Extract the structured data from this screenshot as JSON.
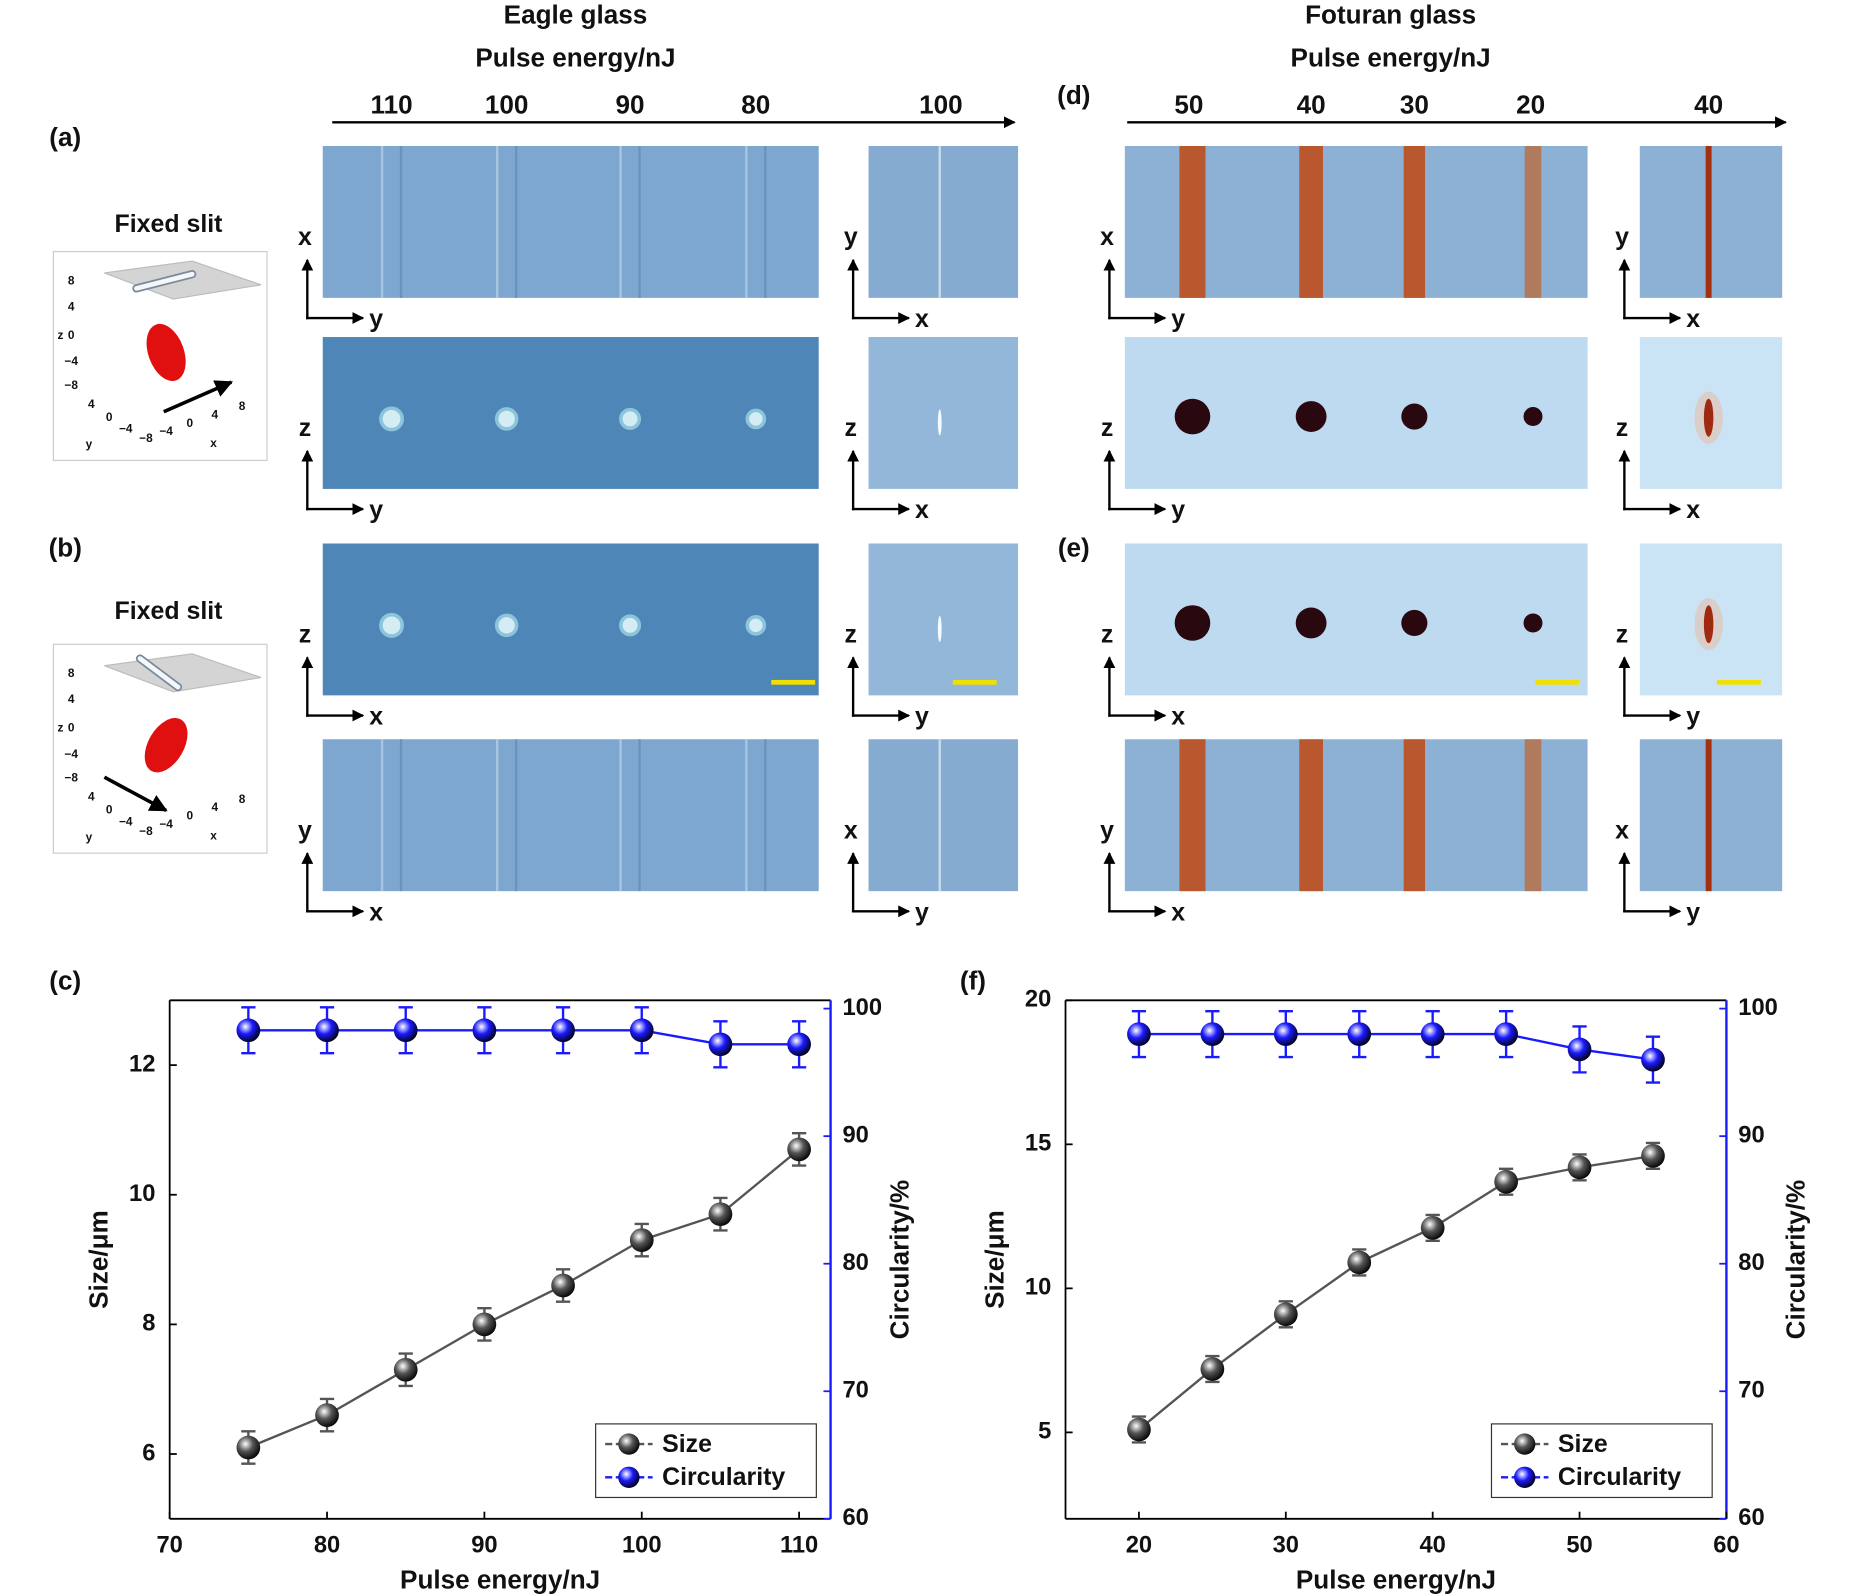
{
  "figure": {
    "columns": [
      {
        "title": "Eagle glass",
        "axis_label": "Pulse energy/nJ",
        "energies": [
          "110",
          "100",
          "90",
          "80",
          "100"
        ],
        "rows": [
          [
            [
              "x",
              "y"
            ],
            [
              "y",
              "x"
            ]
          ],
          [
            [
              "z",
              "y"
            ],
            [
              "z",
              "x"
            ]
          ],
          [
            [
              "z",
              "x"
            ],
            [
              "z",
              "y"
            ]
          ],
          [
            [
              "y",
              "x"
            ],
            [
              "x",
              "y"
            ]
          ]
        ]
      },
      {
        "title": "Foturan glass",
        "axis_label": "Pulse energy/nJ",
        "energies": [
          "50",
          "40",
          "30",
          "20",
          "40"
        ],
        "rows": [
          [
            [
              "x",
              "y"
            ],
            [
              "y",
              "x"
            ]
          ],
          [
            [
              "z",
              "y"
            ],
            [
              "z",
              "x"
            ]
          ],
          [
            [
              "z",
              "x"
            ],
            [
              "z",
              "y"
            ]
          ],
          [
            [
              "y",
              "x"
            ],
            [
              "x",
              "y"
            ]
          ]
        ]
      }
    ],
    "panel_labels": [
      "(a)",
      "(b)",
      "(c)",
      "(d)",
      "(e)",
      "(f)"
    ],
    "insets": [
      {
        "title": "Fixed slit",
        "z_label": "z",
        "x_label": "x",
        "y_label": "y",
        "z_ticks": [
          "8",
          "4",
          "0",
          "−4",
          "−8"
        ],
        "y_ticks": [
          "4",
          "0",
          "−4",
          "−8"
        ],
        "x_ticks": [
          "−4",
          "0",
          "4",
          "8"
        ]
      },
      {
        "title": "Fixed slit",
        "z_label": "z",
        "x_label": "x",
        "y_label": "y",
        "z_ticks": [
          "8",
          "4",
          "0",
          "−4",
          "−8"
        ],
        "y_ticks": [
          "4",
          "0",
          "−4",
          "−8"
        ],
        "x_ticks": [
          "−4",
          "0",
          "4",
          "8"
        ]
      }
    ]
  },
  "chart_data": [
    {
      "type": "line",
      "xlabel": "Pulse energy/nJ",
      "ylabel": "Size/μm",
      "y2label": "Circularity/%",
      "x": [
        75,
        80,
        85,
        90,
        95,
        100,
        105,
        110
      ],
      "xlim": [
        70,
        112
      ],
      "xticks": [
        70,
        80,
        90,
        100,
        110
      ],
      "ylim": [
        5,
        13
      ],
      "yticks": [
        6,
        8,
        10,
        12
      ],
      "y2lim": [
        60,
        100.65
      ],
      "y2ticks": [
        60,
        70,
        80,
        90,
        100
      ],
      "legend": "lower right",
      "series": [
        {
          "name": "Size",
          "color": "#555555",
          "values": [
            6.1,
            6.6,
            7.3,
            8.0,
            8.6,
            9.3,
            9.7,
            10.7
          ],
          "errors": [
            0.25,
            0.25,
            0.25,
            0.25,
            0.25,
            0.25,
            0.25,
            0.25
          ]
        },
        {
          "name": "Circularity",
          "color": "#1a1aff",
          "axis": "y2",
          "values": [
            98.3,
            98.3,
            98.3,
            98.3,
            98.3,
            98.3,
            97.2,
            97.2
          ],
          "errors": [
            1.8,
            1.8,
            1.8,
            1.8,
            1.8,
            1.8,
            1.8,
            1.8
          ]
        }
      ]
    },
    {
      "type": "line",
      "xlabel": "Pulse energy/nJ",
      "ylabel": "Size/μm",
      "y2label": "Circularity/%",
      "x": [
        20,
        25,
        30,
        35,
        40,
        45,
        50,
        55
      ],
      "xlim": [
        15,
        60
      ],
      "xticks": [
        20,
        30,
        40,
        50,
        60
      ],
      "ylim": [
        2,
        20
      ],
      "yticks": [
        5,
        10,
        15,
        20
      ],
      "y2lim": [
        60,
        100.65
      ],
      "y2ticks": [
        60,
        70,
        80,
        90,
        100
      ],
      "legend": "lower right",
      "series": [
        {
          "name": "Size",
          "color": "#555555",
          "values": [
            5.1,
            7.2,
            9.1,
            10.9,
            12.1,
            13.7,
            14.2,
            14.6
          ],
          "errors": [
            0.45,
            0.45,
            0.45,
            0.45,
            0.45,
            0.45,
            0.45,
            0.45
          ]
        },
        {
          "name": "Circularity",
          "color": "#1a1aff",
          "axis": "y2",
          "values": [
            98,
            98,
            98,
            98,
            98,
            98,
            96.8,
            96
          ],
          "errors": [
            1.8,
            1.8,
            1.8,
            1.8,
            1.8,
            1.8,
            1.8,
            1.8
          ]
        }
      ]
    }
  ]
}
